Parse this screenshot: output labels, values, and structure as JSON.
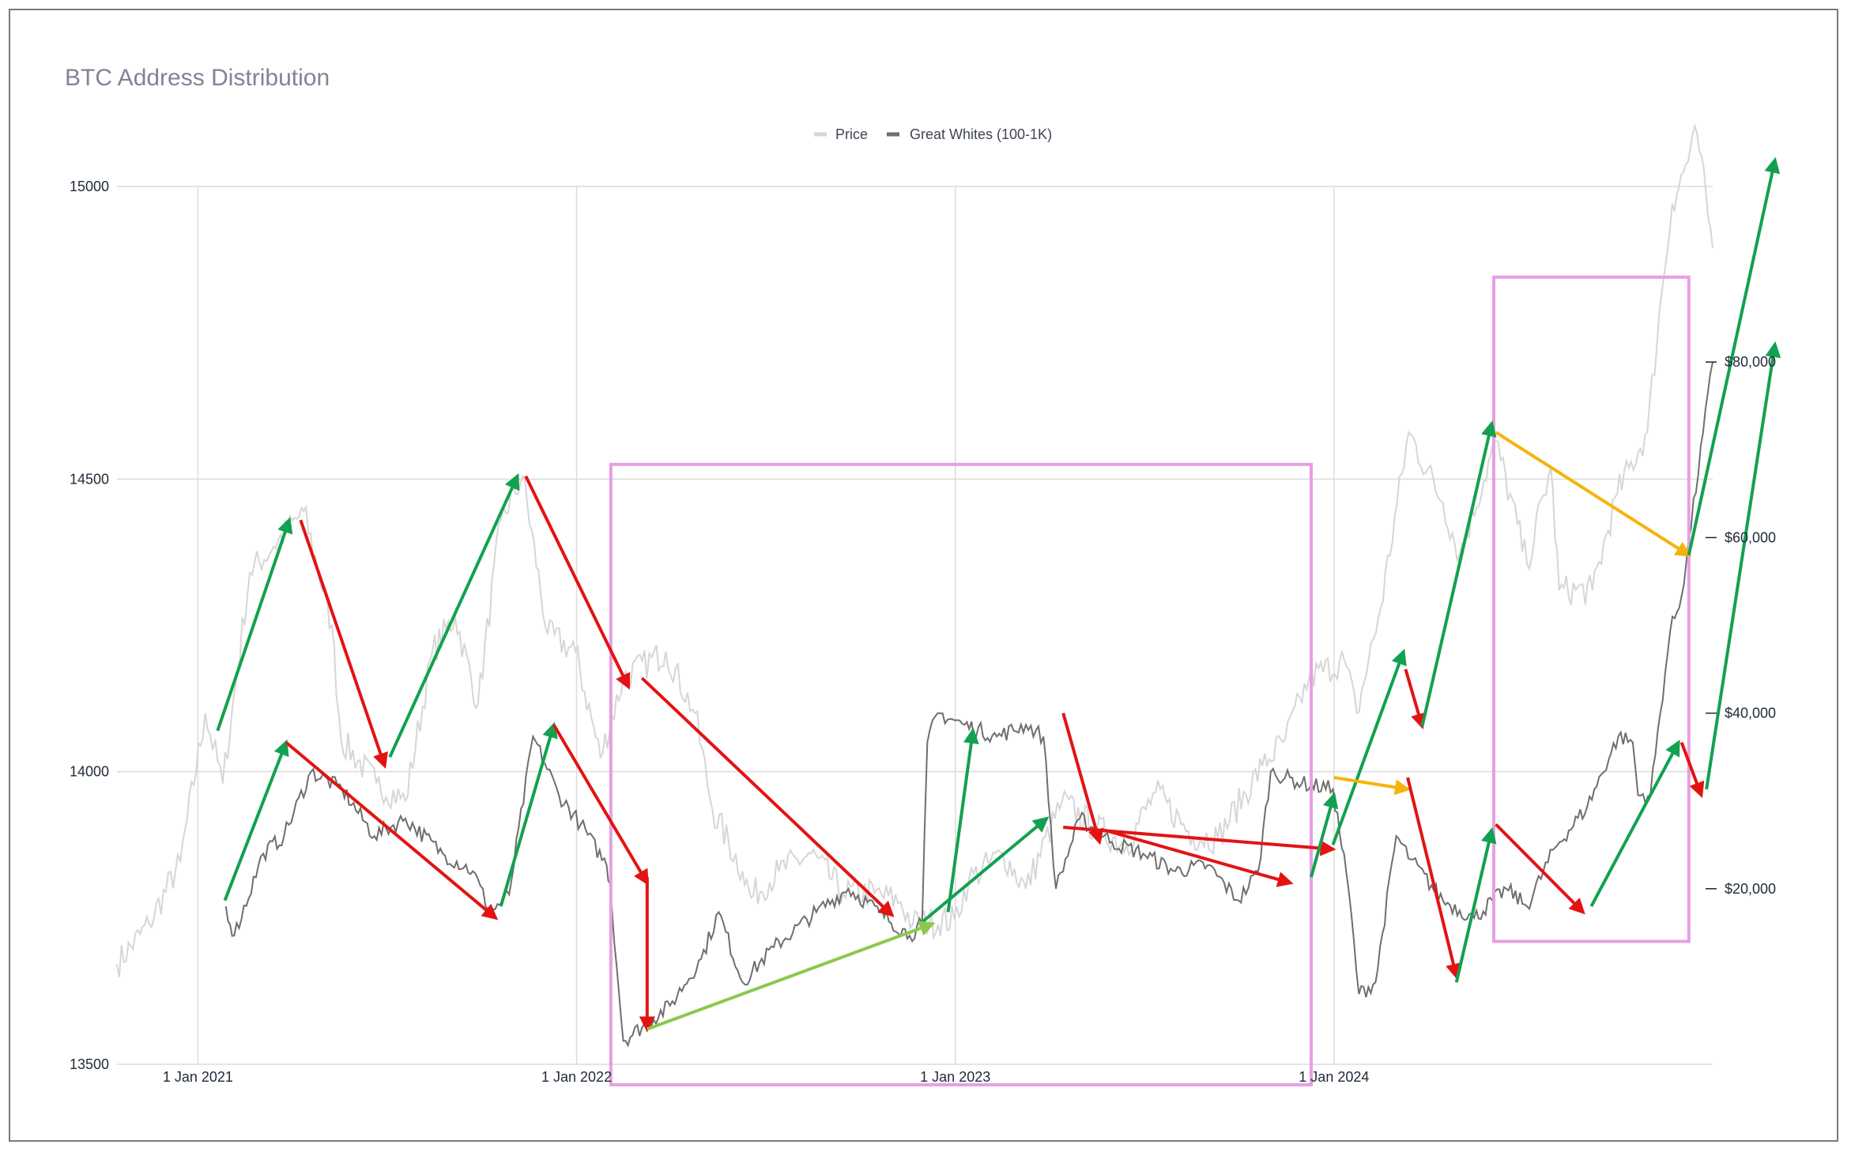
{
  "chart_data": {
    "type": "line",
    "title": "BTC Address Distribution",
    "legend": {
      "position": "top-center",
      "entries": [
        {
          "name": "Price",
          "color": "#d6d6d6"
        },
        {
          "name": "Great Whites (100-1K)",
          "color": "#6e6e6e"
        }
      ]
    },
    "x_axis": {
      "type": "date",
      "range": [
        "2020-10-15",
        "2024-12-31"
      ],
      "ticks": [
        "2021-01-01",
        "2022-01-01",
        "2023-01-01",
        "2024-01-01"
      ],
      "tick_labels": [
        "1 Jan 2021",
        "1 Jan 2022",
        "1 Jan 2023",
        "1 Jan 2024"
      ],
      "grid": true
    },
    "y_axis_left": {
      "range": [
        13500,
        15000
      ],
      "ticks": [
        13500,
        14000,
        14500,
        15000
      ],
      "tick_labels": [
        "13500",
        "14000",
        "14500",
        "15000"
      ],
      "grid": true
    },
    "y_axis_right": {
      "range": [
        0,
        100000
      ],
      "ticks": [
        20000,
        40000,
        60000,
        80000
      ],
      "tick_labels": [
        "$20,000",
        "$40,000",
        "$60,000",
        "$80,000"
      ]
    },
    "series": [
      {
        "name": "Price",
        "axis": "right",
        "color": "#d6d6d6",
        "x": [
          "2020-10-15",
          "2020-11-15",
          "2020-12-15",
          "2021-01-08",
          "2021-01-25",
          "2021-02-20",
          "2021-03-15",
          "2021-04-13",
          "2021-05-10",
          "2021-05-19",
          "2021-06-22",
          "2021-07-20",
          "2021-08-15",
          "2021-09-06",
          "2021-09-28",
          "2021-10-20",
          "2021-11-10",
          "2021-12-04",
          "2021-12-31",
          "2022-01-24",
          "2022-02-15",
          "2022-03-28",
          "2022-04-25",
          "2022-05-12",
          "2022-06-10",
          "2022-06-18",
          "2022-07-15",
          "2022-08-15",
          "2022-09-15",
          "2022-10-15",
          "2022-11-09",
          "2022-11-21",
          "2022-12-31",
          "2023-01-14",
          "2023-02-16",
          "2023-03-10",
          "2023-04-14",
          "2023-05-15",
          "2023-06-15",
          "2023-07-13",
          "2023-08-18",
          "2023-09-11",
          "2023-10-24",
          "2023-11-15",
          "2023-12-08",
          "2024-01-11",
          "2024-01-23",
          "2024-02-15",
          "2024-03-13",
          "2024-04-15",
          "2024-05-01",
          "2024-06-05",
          "2024-07-05",
          "2024-07-28",
          "2024-08-05",
          "2024-09-06",
          "2024-09-30",
          "2024-10-29",
          "2024-11-12",
          "2024-11-22",
          "2024-12-16",
          "2024-12-31"
        ],
        "values": [
          11400,
          16000,
          23000,
          40000,
          32000,
          56000,
          59000,
          63000,
          50000,
          37000,
          32000,
          30000,
          47000,
          51000,
          41000,
          62000,
          67000,
          49000,
          47000,
          35000,
          44000,
          47000,
          40000,
          29000,
          22000,
          19000,
          22000,
          24000,
          19500,
          19500,
          18500,
          16000,
          16500,
          21000,
          24000,
          20000,
          30000,
          27000,
          25000,
          31000,
          26000,
          25800,
          34000,
          37000,
          44000,
          46000,
          40000,
          52000,
          72000,
          64000,
          58000,
          71000,
          57000,
          68000,
          54000,
          54000,
          65000,
          72000,
          88000,
          98000,
          106000,
          93000
        ]
      },
      {
        "name": "Great Whites (100-1K)",
        "axis": "left",
        "color": "#6e6e6e",
        "x": [
          "2021-01-28",
          "2021-02-05",
          "2021-03-05",
          "2021-03-25",
          "2021-04-20",
          "2021-05-20",
          "2021-06-20",
          "2021-07-20",
          "2021-08-25",
          "2021-09-23",
          "2021-10-10",
          "2021-10-28",
          "2021-11-20",
          "2021-12-15",
          "2022-01-05",
          "2022-01-30",
          "2022-02-02",
          "2022-02-15",
          "2022-04-01",
          "2022-05-01",
          "2022-05-18",
          "2022-06-10",
          "2022-07-10",
          "2022-08-20",
          "2022-09-20",
          "2022-10-20",
          "2022-11-18",
          "2022-11-30",
          "2022-12-05",
          "2022-12-15",
          "2023-01-10",
          "2023-02-10",
          "2023-03-10",
          "2023-03-27",
          "2023-04-08",
          "2023-05-01",
          "2023-06-01",
          "2023-07-01",
          "2023-08-01",
          "2023-09-01",
          "2023-10-01",
          "2023-10-20",
          "2023-11-01",
          "2023-12-01",
          "2023-12-31",
          "2024-01-15",
          "2024-01-25",
          "2024-02-10",
          "2024-03-01",
          "2024-03-15",
          "2024-04-15",
          "2024-05-15",
          "2024-06-15",
          "2024-07-05",
          "2024-08-01",
          "2024-09-01",
          "2024-10-01",
          "2024-10-15",
          "2024-10-20",
          "2024-11-01",
          "2024-11-20",
          "2024-12-01",
          "2024-12-31"
        ],
        "values": [
          13770,
          13720,
          13860,
          13890,
          14000,
          13970,
          13890,
          13920,
          13860,
          13830,
          13760,
          13790,
          14060,
          13960,
          13910,
          13840,
          13810,
          13540,
          13600,
          13680,
          13760,
          13640,
          13700,
          13760,
          13800,
          13760,
          13720,
          13740,
          14050,
          14100,
          14080,
          14060,
          14080,
          14060,
          13800,
          13920,
          13880,
          13860,
          13830,
          13840,
          13780,
          13830,
          14000,
          13980,
          13970,
          13800,
          13620,
          13640,
          13890,
          13850,
          13780,
          13750,
          13800,
          13770,
          13870,
          13940,
          14060,
          14050,
          13960,
          13960,
          14240,
          14300,
          14700
        ]
      }
    ],
    "annotations": {
      "arrows": [
        {
          "color": "#12a150",
          "x1": "2021-01-20",
          "y1": 38000,
          "x2": "2021-03-30",
          "y2": 62000
        },
        {
          "color": "#e31313",
          "x1": "2021-04-10",
          "y1": 62000,
          "x2": "2021-06-30",
          "y2": 34000
        },
        {
          "color": "#12a150",
          "x1": "2021-07-05",
          "y1": 35000,
          "x2": "2021-11-05",
          "y2": 67000
        },
        {
          "color": "#e31313",
          "x1": "2021-11-13",
          "y1": 67000,
          "x2": "2022-02-20",
          "y2": 43000
        },
        {
          "color": "#e31313",
          "x1": "2022-03-05",
          "y1": 44000,
          "x2": "2022-11-01",
          "y2": 17000
        },
        {
          "color": "#12a150",
          "x1": "2022-11-28",
          "y1": 16000,
          "x2": "2023-03-30",
          "y2": 28000
        },
        {
          "color": "#e31313",
          "x1": "2023-04-15",
          "y1": 27000,
          "x2": "2023-12-31",
          "y2": 24500
        },
        {
          "color": "#12a150",
          "x1": "2023-12-31",
          "y1": 25000,
          "x2": "2024-03-08",
          "y2": 47000
        },
        {
          "color": "#e31313",
          "x1": "2024-03-10",
          "y1": 45000,
          "x2": "2024-03-26",
          "y2": 38500
        },
        {
          "color": "#12a150",
          "x1": "2024-03-26",
          "y1": 38500,
          "x2": "2024-06-01",
          "y2": 73000
        },
        {
          "color": "#f5b40c",
          "x1": "2024-06-05",
          "y1": 72000,
          "x2": "2024-12-08",
          "y2": 58000
        },
        {
          "color": "#12a150",
          "x1": "2024-12-08",
          "y1": 58000,
          "x2": "2025-03-01",
          "y2": 103000
        },
        {
          "color": "#12a150",
          "axis": "left",
          "x1": "2021-01-27",
          "y1": 13780,
          "x2": "2021-03-27",
          "y2": 14050
        },
        {
          "color": "#e31313",
          "axis": "left",
          "x1": "2021-03-27",
          "y1": 14050,
          "x2": "2021-10-15",
          "y2": 13750
        },
        {
          "color": "#12a150",
          "axis": "left",
          "x1": "2021-10-20",
          "y1": 13770,
          "x2": "2021-12-10",
          "y2": 14080
        },
        {
          "color": "#e31313",
          "axis": "left",
          "x1": "2021-12-10",
          "y1": 14080,
          "x2": "2022-03-10",
          "y2": 13810
        },
        {
          "color": "#e31313",
          "axis": "left",
          "x1": "2022-03-10",
          "y1": 13820,
          "x2": "2022-03-10",
          "y2": 13560
        },
        {
          "color": "#8cc84b",
          "axis": "left",
          "x1": "2022-03-10",
          "y1": 13560,
          "x2": "2022-12-10",
          "y2": 13740
        },
        {
          "color": "#12a150",
          "axis": "left",
          "x1": "2022-12-25",
          "y1": 13760,
          "x2": "2023-01-18",
          "y2": 14070
        },
        {
          "color": "#e31313",
          "axis": "left",
          "x1": "2023-04-15",
          "y1": 14100,
          "x2": "2023-05-20",
          "y2": 13880
        },
        {
          "color": "#e31313",
          "axis": "left",
          "x1": "2023-05-25",
          "y1": 13900,
          "x2": "2023-11-20",
          "y2": 13810
        },
        {
          "color": "#12a150",
          "axis": "left",
          "x1": "2023-12-10",
          "y1": 13820,
          "x2": "2024-01-01",
          "y2": 13960
        },
        {
          "color": "#f5b40c",
          "axis": "left",
          "x1": "2024-01-01",
          "y1": 13990,
          "x2": "2024-03-12",
          "y2": 13970
        },
        {
          "color": "#e31313",
          "axis": "left",
          "x1": "2024-03-12",
          "y1": 13990,
          "x2": "2024-04-28",
          "y2": 13650
        },
        {
          "color": "#12a150",
          "axis": "left",
          "x1": "2024-04-28",
          "y1": 13640,
          "x2": "2024-06-01",
          "y2": 13900
        },
        {
          "color": "#e31313",
          "axis": "left",
          "x1": "2024-06-05",
          "y1": 13910,
          "x2": "2024-08-28",
          "y2": 13760
        },
        {
          "color": "#12a150",
          "axis": "left",
          "x1": "2024-09-05",
          "y1": 13770,
          "x2": "2024-11-28",
          "y2": 14050
        },
        {
          "color": "#e31313",
          "axis": "left",
          "x1": "2024-12-01",
          "y1": 14050,
          "x2": "2024-12-20",
          "y2": 13960
        },
        {
          "color": "#12a150",
          "axis": "left",
          "x1": "2024-12-25",
          "y1": 13970,
          "x2": "2025-03-01",
          "y2": 14730
        }
      ],
      "boxes": [
        {
          "color": "#e79ee4",
          "x1": "2022-02-03",
          "x2": "2023-12-10",
          "y1": 13465,
          "y2": 14525
        },
        {
          "color": "#e79ee4",
          "x1": "2024-06-03",
          "x2": "2024-12-08",
          "y1": 13710,
          "y2": 14845
        }
      ]
    }
  }
}
